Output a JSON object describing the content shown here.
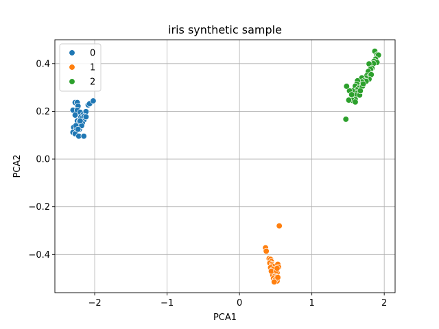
{
  "chart_data": {
    "type": "scatter",
    "title": "iris synthetic sample",
    "xlabel": "PCA1",
    "ylabel": "PCA2",
    "xlim": [
      -2.55,
      2.15
    ],
    "ylim": [
      -0.56,
      0.5
    ],
    "xticks": [
      -2,
      -1,
      0,
      1,
      2
    ],
    "xtick_labels": [
      "−2",
      "−1",
      "0",
      "1",
      "2"
    ],
    "yticks": [
      -0.4,
      -0.2,
      0.0,
      0.2,
      0.4
    ],
    "ytick_labels": [
      "−0.4",
      "−0.2",
      "0.0",
      "0.2",
      "0.4"
    ],
    "grid": true,
    "legend": {
      "placement": "top-left"
    },
    "series": [
      {
        "name": "0",
        "color": "#1f77b4",
        "points": [
          [
            -2.3,
            0.205
          ],
          [
            -2.27,
            0.237
          ],
          [
            -2.24,
            0.237
          ],
          [
            -2.23,
            0.222
          ],
          [
            -2.24,
            0.205
          ],
          [
            -2.2,
            0.196
          ],
          [
            -2.16,
            0.186
          ],
          [
            -2.13,
            0.182
          ],
          [
            -2.12,
            0.199
          ],
          [
            -2.09,
            0.227
          ],
          [
            -2.07,
            0.232
          ],
          [
            -2.02,
            0.244
          ],
          [
            -2.27,
            0.184
          ],
          [
            -2.24,
            0.16
          ],
          [
            -2.21,
            0.158
          ],
          [
            -2.19,
            0.176
          ],
          [
            -2.17,
            0.172
          ],
          [
            -2.15,
            0.163
          ],
          [
            -2.14,
            0.18
          ],
          [
            -2.12,
            0.177
          ],
          [
            -2.29,
            0.133
          ],
          [
            -2.27,
            0.118
          ],
          [
            -2.3,
            0.112
          ],
          [
            -2.27,
            0.106
          ],
          [
            -2.25,
            0.128
          ],
          [
            -2.22,
            0.135
          ],
          [
            -2.19,
            0.146
          ],
          [
            -2.17,
            0.151
          ],
          [
            -2.21,
            0.125
          ],
          [
            -2.18,
            0.14
          ],
          [
            -2.22,
            0.096
          ],
          [
            -2.15,
            0.096
          ],
          [
            -2.26,
            0.14
          ],
          [
            -2.2,
            0.16
          ],
          [
            -2.23,
            0.125
          ]
        ]
      },
      {
        "name": "1",
        "color": "#ff7f0e",
        "points": [
          [
            0.55,
            -0.28
          ],
          [
            0.36,
            -0.372
          ],
          [
            0.37,
            -0.386
          ],
          [
            0.41,
            -0.417
          ],
          [
            0.43,
            -0.42
          ],
          [
            0.44,
            -0.429
          ],
          [
            0.42,
            -0.436
          ],
          [
            0.45,
            -0.441
          ],
          [
            0.46,
            -0.447
          ],
          [
            0.48,
            -0.45
          ],
          [
            0.53,
            -0.441
          ],
          [
            0.54,
            -0.453
          ],
          [
            0.43,
            -0.455
          ],
          [
            0.45,
            -0.466
          ],
          [
            0.47,
            -0.462
          ],
          [
            0.48,
            -0.476
          ],
          [
            0.5,
            -0.482
          ],
          [
            0.52,
            -0.476
          ],
          [
            0.46,
            -0.486
          ],
          [
            0.49,
            -0.492
          ],
          [
            0.51,
            -0.495
          ],
          [
            0.47,
            -0.5
          ],
          [
            0.49,
            -0.508
          ],
          [
            0.52,
            -0.511
          ],
          [
            0.5,
            -0.504
          ],
          [
            0.53,
            -0.496
          ],
          [
            0.44,
            -0.47
          ],
          [
            0.51,
            -0.468
          ],
          [
            0.52,
            -0.458
          ],
          [
            0.48,
            -0.515
          ]
        ]
      },
      {
        "name": "2",
        "color": "#2ca02c",
        "points": [
          [
            1.87,
            0.452
          ],
          [
            1.9,
            0.437
          ],
          [
            1.92,
            0.436
          ],
          [
            1.88,
            0.419
          ],
          [
            1.86,
            0.41
          ],
          [
            1.9,
            0.405
          ],
          [
            1.85,
            0.4
          ],
          [
            1.79,
            0.399
          ],
          [
            1.83,
            0.381
          ],
          [
            1.81,
            0.376
          ],
          [
            1.78,
            0.367
          ],
          [
            1.76,
            0.35
          ],
          [
            1.8,
            0.347
          ],
          [
            1.82,
            0.354
          ],
          [
            1.79,
            0.335
          ],
          [
            1.74,
            0.34
          ],
          [
            1.69,
            0.34
          ],
          [
            1.73,
            0.329
          ],
          [
            1.75,
            0.326
          ],
          [
            1.69,
            0.324
          ],
          [
            1.66,
            0.311
          ],
          [
            1.63,
            0.328
          ],
          [
            1.62,
            0.314
          ],
          [
            1.6,
            0.306
          ],
          [
            1.65,
            0.298
          ],
          [
            1.62,
            0.29
          ],
          [
            1.58,
            0.284
          ],
          [
            1.56,
            0.286
          ],
          [
            1.52,
            0.286
          ],
          [
            1.63,
            0.276
          ],
          [
            1.59,
            0.268
          ],
          [
            1.66,
            0.268
          ],
          [
            1.55,
            0.27
          ],
          [
            1.6,
            0.25
          ],
          [
            1.56,
            0.246
          ],
          [
            1.6,
            0.239
          ],
          [
            1.51,
            0.247
          ],
          [
            1.48,
            0.305
          ],
          [
            1.47,
            0.167
          ],
          [
            1.7,
            0.306
          ],
          [
            1.71,
            0.315
          ],
          [
            1.67,
            0.286
          ]
        ]
      }
    ]
  }
}
